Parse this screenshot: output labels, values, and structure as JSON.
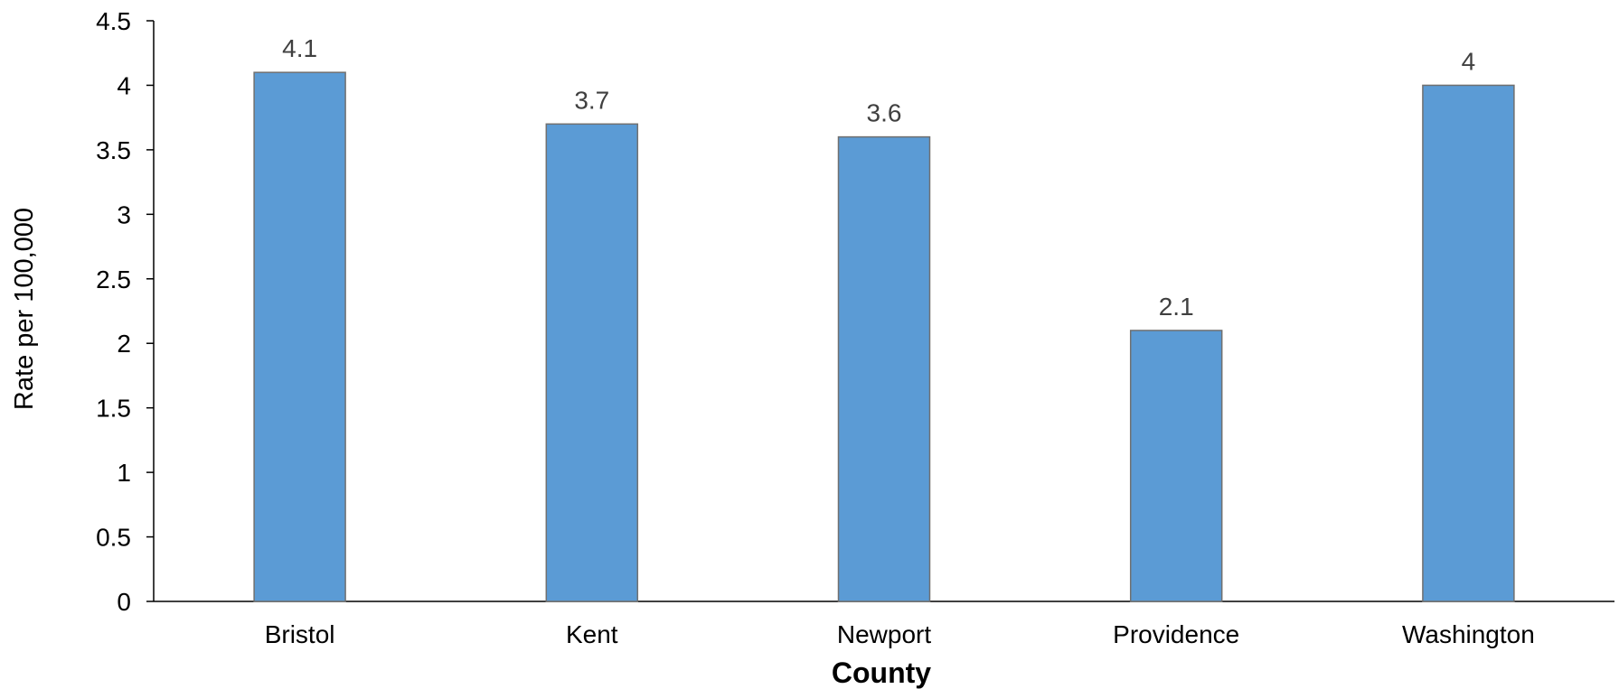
{
  "chart_data": {
    "type": "bar",
    "categories": [
      "Bristol",
      "Kent",
      "Newport",
      "Providence",
      "Washington"
    ],
    "values": [
      4.1,
      3.7,
      3.6,
      2.1,
      4
    ],
    "value_labels": [
      "4.1",
      "3.7",
      "3.6",
      "2.1",
      "4"
    ],
    "xlabel": "County",
    "ylabel": "Rate per 100,000",
    "ylim": [
      0,
      4.5
    ],
    "yticks": [
      0,
      0.5,
      1,
      1.5,
      2,
      2.5,
      3,
      3.5,
      4,
      4.5
    ],
    "ytick_labels": [
      "0",
      "0.5",
      "1",
      "1.5",
      "2",
      "2.5",
      "3",
      "3.5",
      "4",
      "4.5"
    ],
    "grid": false,
    "legend": "none",
    "bar_color": "#5B9BD5",
    "bar_edge_color": "#707070",
    "data_label_color": "#404040"
  }
}
